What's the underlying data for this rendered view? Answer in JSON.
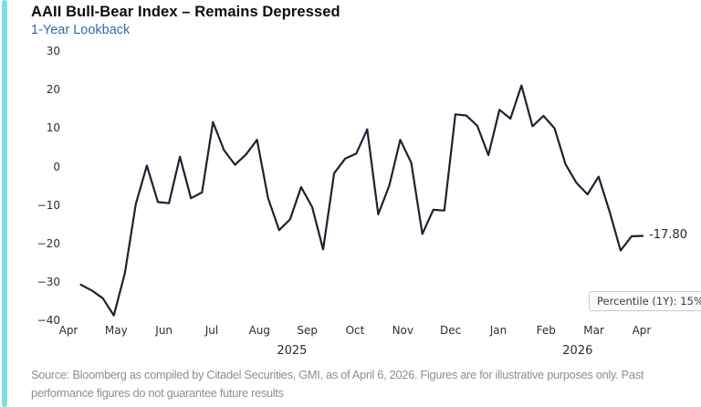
{
  "header": {
    "title": "AAII Bull-Bear Index – Remains Depressed",
    "subtitle": "1-Year Lookback",
    "title_color": "#0d0d0d",
    "subtitle_color": "#2f6da8",
    "accent_bar_color": "#80dede"
  },
  "chart_data": {
    "type": "line",
    "title": "AAII Bull-Bear Index – Remains Depressed",
    "subtitle": "1-Year Lookback",
    "grid": false,
    "line_color": "#1c2231",
    "ylim": [
      -40,
      30
    ],
    "y_ticks": [
      30,
      20,
      10,
      0,
      -10,
      -20,
      -30,
      -40
    ],
    "x_tick_labels": [
      "Apr",
      "May",
      "Jun",
      "Jul",
      "Aug",
      "Sep",
      "Oct",
      "Nov",
      "Dec",
      "Jan",
      "Feb",
      "Mar",
      "Apr"
    ],
    "x_range": "Apr 2025 – Apr 2026 (weekly data)",
    "year_labels": [
      {
        "text": "2025",
        "month_index": 4.68
      },
      {
        "text": "2026",
        "month_index": 10.66
      }
    ],
    "series": [
      {
        "name": "AAII Bull-Bear Index (1-year lookback, weekly)",
        "values": [
          -30.5,
          -32,
          -34,
          -38.5,
          -27.5,
          -9.5,
          0.5,
          -9,
          -9.3,
          2.8,
          -8,
          -6.5,
          11.8,
          4.5,
          0.7,
          3.4,
          7.2,
          -8,
          -16.3,
          -13.5,
          -5.1,
          -10.3,
          -21.3,
          -1.5,
          2.3,
          3.6,
          9.9,
          -12.2,
          -4.7,
          7.2,
          1.2,
          -17.3,
          -11,
          -11.2,
          13.8,
          13.5,
          10.8,
          3.2,
          15,
          12.7,
          21.3,
          10.7,
          13.4,
          10.2,
          0.8,
          -4,
          -7,
          -2.4,
          -11.5,
          -21.6,
          -17.9,
          -17.8
        ]
      }
    ],
    "end_label": "-17.80",
    "last_value": -17.8,
    "annotation": "Percentile (1Y): 15%"
  },
  "footer": {
    "line1": "Source: Bloomberg as compiled by Citadel Securities, GMI, as of April 6, 2026. Figures are for illustrative purposes only. Past",
    "line2": "performance figures do not guarantee future results"
  }
}
